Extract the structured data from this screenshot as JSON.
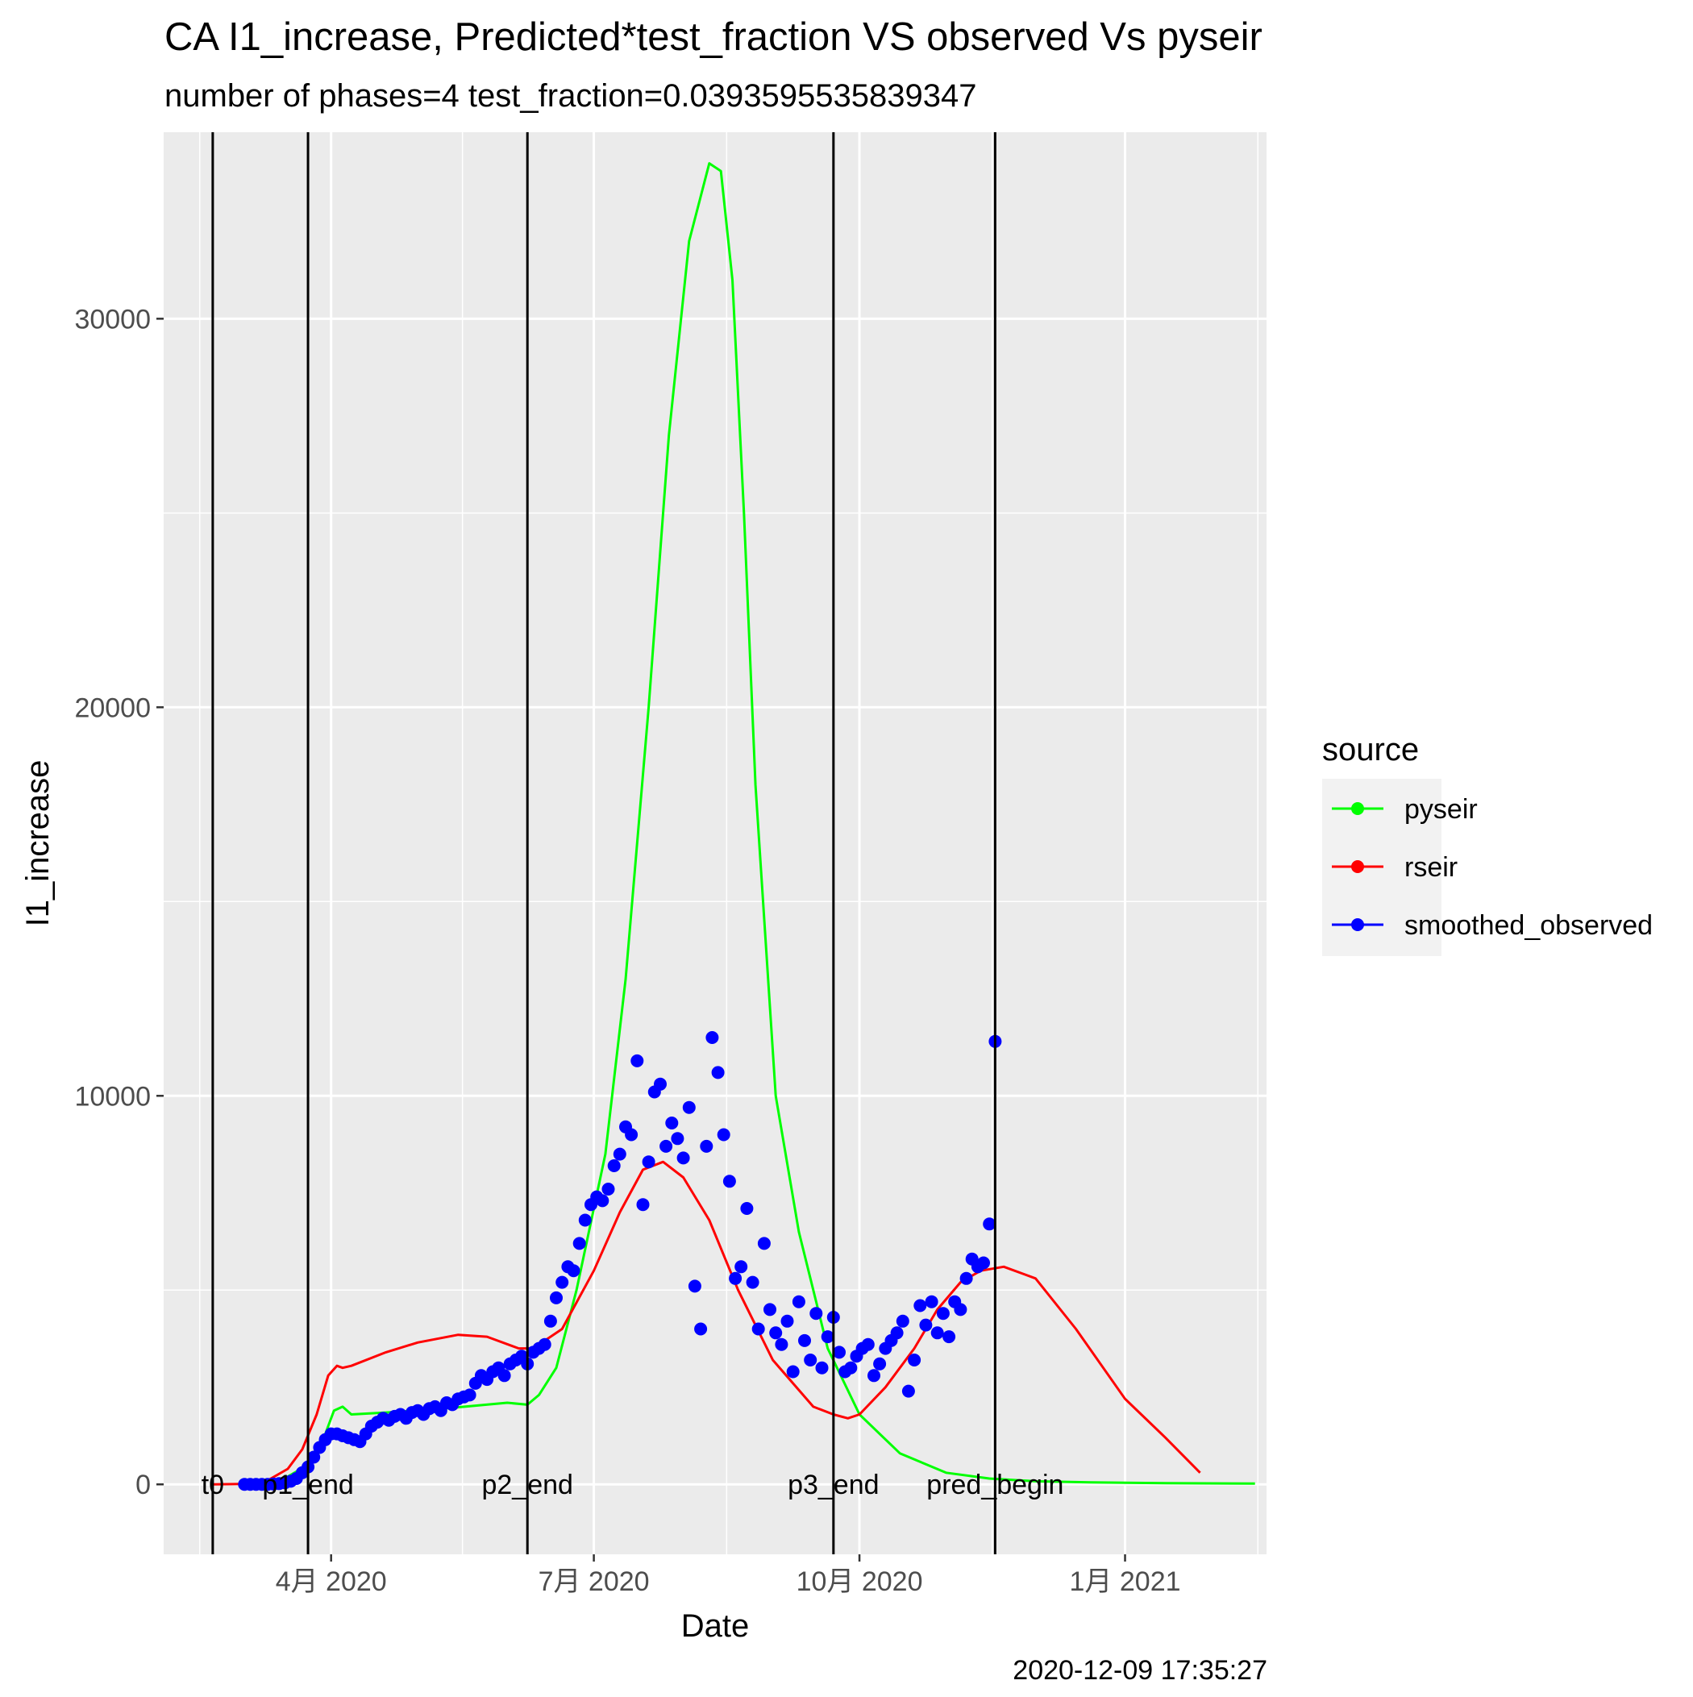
{
  "chart_data": {
    "type": "line",
    "title": "CA I1_increase, Predicted*test_fraction VS observed Vs pyseir",
    "subtitle": "number of phases=4   test_fraction=0.0393595535839347",
    "xlabel": "Date",
    "ylabel": "I1_increase",
    "caption": "2020-12-09 17:35:27",
    "xlim": [
      "2020-02-03",
      "2021-02-19"
    ],
    "ylim": [
      -1800,
      34800
    ],
    "grid": true,
    "x_ticks": [
      {
        "date": "2020-04-01",
        "label": "4月 2020"
      },
      {
        "date": "2020-07-01",
        "label": "7月 2020"
      },
      {
        "date": "2020-10-01",
        "label": "10月 2020"
      },
      {
        "date": "2021-01-01",
        "label": "1月 2021"
      }
    ],
    "y_ticks": [
      {
        "value": 0,
        "label": "0"
      },
      {
        "value": 10000,
        "label": "10000"
      },
      {
        "value": 20000,
        "label": "20000"
      },
      {
        "value": 30000,
        "label": "30000"
      }
    ],
    "vlines": [
      {
        "date": "2020-02-20",
        "label": "t0"
      },
      {
        "date": "2020-03-24",
        "label": "p1_end"
      },
      {
        "date": "2020-06-08",
        "label": "p2_end"
      },
      {
        "date": "2020-09-22",
        "label": "p3_end"
      },
      {
        "date": "2020-11-17",
        "label": "pred_begin"
      }
    ],
    "legend": {
      "title": "source",
      "position": "right",
      "entries": [
        {
          "name": "pyseir",
          "color": "#00FF00"
        },
        {
          "name": "rseir",
          "color": "#FF0000"
        },
        {
          "name": "smoothed_observed",
          "color": "#0000FF"
        }
      ]
    },
    "series": [
      {
        "name": "pyseir",
        "style": "line",
        "color": "#00FF00",
        "x": [
          "2020-03-01",
          "2020-03-10",
          "2020-03-17",
          "2020-03-24",
          "2020-03-28",
          "2020-03-31",
          "2020-04-02",
          "2020-04-05",
          "2020-04-08",
          "2020-04-20",
          "2020-05-10",
          "2020-06-01",
          "2020-06-08",
          "2020-06-12",
          "2020-06-18",
          "2020-06-25",
          "2020-07-05",
          "2020-07-12",
          "2020-07-20",
          "2020-07-27",
          "2020-08-03",
          "2020-08-10",
          "2020-08-14",
          "2020-08-18",
          "2020-08-22",
          "2020-08-26",
          "2020-09-02",
          "2020-09-10",
          "2020-09-20",
          "2020-10-01",
          "2020-10-15",
          "2020-10-31",
          "2020-11-15",
          "2020-12-01",
          "2020-12-20",
          "2021-01-15",
          "2021-02-15"
        ],
        "y": [
          0,
          20,
          200,
          500,
          900,
          1500,
          1900,
          2000,
          1800,
          1850,
          1950,
          2100,
          2050,
          2300,
          3000,
          5000,
          8500,
          13000,
          20000,
          27000,
          32000,
          34000,
          33800,
          31000,
          25000,
          18000,
          10000,
          6500,
          3500,
          1800,
          800,
          300,
          150,
          80,
          50,
          30,
          20
        ]
      },
      {
        "name": "rseir",
        "style": "line",
        "color": "#FF0000",
        "x": [
          "2020-02-20",
          "2020-03-01",
          "2020-03-10",
          "2020-03-17",
          "2020-03-22",
          "2020-03-27",
          "2020-03-31",
          "2020-04-03",
          "2020-04-05",
          "2020-04-08",
          "2020-04-20",
          "2020-05-01",
          "2020-05-15",
          "2020-05-25",
          "2020-06-05",
          "2020-06-10",
          "2020-06-20",
          "2020-07-01",
          "2020-07-10",
          "2020-07-18",
          "2020-07-25",
          "2020-08-01",
          "2020-08-10",
          "2020-08-20",
          "2020-09-01",
          "2020-09-15",
          "2020-09-22",
          "2020-09-27",
          "2020-10-01",
          "2020-10-10",
          "2020-10-20",
          "2020-10-28",
          "2020-11-05",
          "2020-11-12",
          "2020-11-20",
          "2020-12-01",
          "2020-12-15",
          "2021-01-01",
          "2021-01-15",
          "2021-01-27"
        ],
        "y": [
          0,
          10,
          100,
          400,
          900,
          1800,
          2800,
          3050,
          3000,
          3050,
          3400,
          3650,
          3850,
          3800,
          3500,
          3500,
          4000,
          5500,
          7000,
          8100,
          8300,
          7900,
          6800,
          5000,
          3200,
          2000,
          1800,
          1700,
          1800,
          2500,
          3500,
          4500,
          5200,
          5500,
          5600,
          5300,
          4000,
          2200,
          1200,
          300
        ]
      },
      {
        "name": "smoothed_observed",
        "style": "points",
        "color": "#0000FF",
        "x": [
          "2020-03-02",
          "2020-03-04",
          "2020-03-06",
          "2020-03-08",
          "2020-03-10",
          "2020-03-12",
          "2020-03-14",
          "2020-03-16",
          "2020-03-18",
          "2020-03-20",
          "2020-03-22",
          "2020-03-24",
          "2020-03-26",
          "2020-03-28",
          "2020-03-30",
          "2020-04-01",
          "2020-04-03",
          "2020-04-05",
          "2020-04-07",
          "2020-04-09",
          "2020-04-11",
          "2020-04-13",
          "2020-04-15",
          "2020-04-17",
          "2020-04-19",
          "2020-04-21",
          "2020-04-23",
          "2020-04-25",
          "2020-04-27",
          "2020-04-29",
          "2020-05-01",
          "2020-05-03",
          "2020-05-05",
          "2020-05-07",
          "2020-05-09",
          "2020-05-11",
          "2020-05-13",
          "2020-05-15",
          "2020-05-17",
          "2020-05-19",
          "2020-05-21",
          "2020-05-23",
          "2020-05-25",
          "2020-05-27",
          "2020-05-29",
          "2020-05-31",
          "2020-06-02",
          "2020-06-04",
          "2020-06-06",
          "2020-06-08",
          "2020-06-10",
          "2020-06-12",
          "2020-06-14",
          "2020-06-16",
          "2020-06-18",
          "2020-06-20",
          "2020-06-22",
          "2020-06-24",
          "2020-06-26",
          "2020-06-28",
          "2020-06-30",
          "2020-07-02",
          "2020-07-04",
          "2020-07-06",
          "2020-07-08",
          "2020-07-10",
          "2020-07-12",
          "2020-07-14",
          "2020-07-16",
          "2020-07-18",
          "2020-07-20",
          "2020-07-22",
          "2020-07-24",
          "2020-07-26",
          "2020-07-28",
          "2020-07-30",
          "2020-08-01",
          "2020-08-03",
          "2020-08-05",
          "2020-08-07",
          "2020-08-09",
          "2020-08-11",
          "2020-08-13",
          "2020-08-15",
          "2020-08-17",
          "2020-08-19",
          "2020-08-21",
          "2020-08-23",
          "2020-08-25",
          "2020-08-27",
          "2020-08-29",
          "2020-08-31",
          "2020-09-02",
          "2020-09-04",
          "2020-09-06",
          "2020-09-08",
          "2020-09-10",
          "2020-09-12",
          "2020-09-14",
          "2020-09-16",
          "2020-09-18",
          "2020-09-20",
          "2020-09-22",
          "2020-09-24",
          "2020-09-26",
          "2020-09-28",
          "2020-09-30",
          "2020-10-02",
          "2020-10-04",
          "2020-10-06",
          "2020-10-08",
          "2020-10-10",
          "2020-10-12",
          "2020-10-14",
          "2020-10-16",
          "2020-10-18",
          "2020-10-20",
          "2020-10-22",
          "2020-10-24",
          "2020-10-26",
          "2020-10-28",
          "2020-10-30",
          "2020-11-01",
          "2020-11-03",
          "2020-11-05",
          "2020-11-07",
          "2020-11-09",
          "2020-11-11",
          "2020-11-13",
          "2020-11-15",
          "2020-11-17"
        ],
        "y": [
          0,
          0,
          0,
          0,
          0,
          10,
          20,
          40,
          80,
          150,
          300,
          450,
          700,
          950,
          1150,
          1300,
          1300,
          1250,
          1200,
          1150,
          1100,
          1300,
          1500,
          1600,
          1700,
          1650,
          1750,
          1800,
          1700,
          1850,
          1900,
          1800,
          1950,
          2000,
          1900,
          2100,
          2050,
          2200,
          2250,
          2300,
          2600,
          2800,
          2700,
          2900,
          3000,
          2800,
          3100,
          3200,
          3300,
          3100,
          3400,
          3500,
          3600,
          4200,
          4800,
          5200,
          5600,
          5500,
          6200,
          6800,
          7200,
          7400,
          7300,
          7600,
          8200,
          8500,
          9200,
          9000,
          10900,
          7200,
          8300,
          10100,
          10300,
          8700,
          9300,
          8900,
          8400,
          9700,
          5100,
          4000,
          8700,
          11500,
          10600,
          9000,
          7800,
          5300,
          5600,
          7100,
          5200,
          4000,
          6200,
          4500,
          3900,
          3600,
          4200,
          2900,
          4700,
          3700,
          3200,
          4400,
          3000,
          3800,
          4300,
          3400,
          2900,
          3000,
          3300,
          3500,
          3600,
          2800,
          3100,
          3500,
          3700,
          3900,
          4200,
          2400,
          3200,
          4600,
          4100,
          4700,
          3900,
          4400,
          3800,
          4700,
          4500,
          5300,
          5800,
          5600,
          5700,
          6700,
          11400
        ]
      }
    ]
  }
}
